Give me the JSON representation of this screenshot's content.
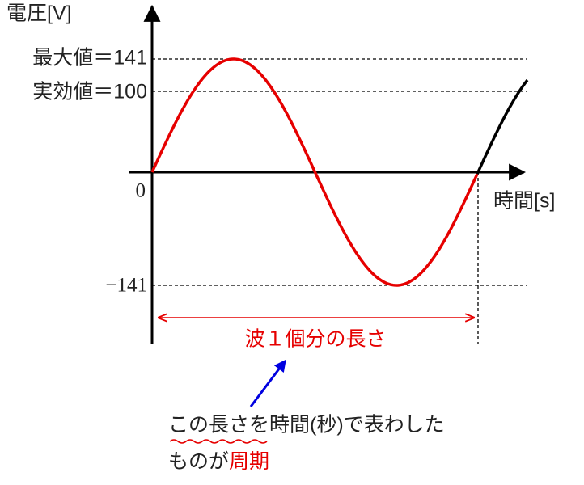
{
  "axes": {
    "y_label": "電圧[V]",
    "x_label": "時間[s]",
    "origin_label": "0"
  },
  "levels": {
    "max": "最大値＝141",
    "rms": "実効値＝100",
    "min": "−141"
  },
  "span_label": "波１個分の長さ",
  "note": {
    "line1": "この長さを時間(秒)で表わした",
    "line2_prefix": "ものが",
    "line2_emphasis": "周期"
  }
}
